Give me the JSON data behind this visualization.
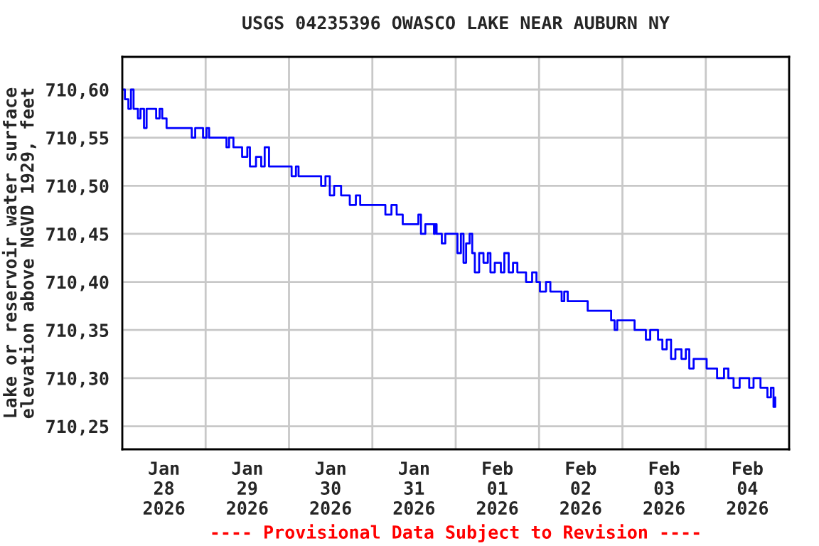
{
  "chart_data": {
    "type": "step",
    "title": "USGS 04235396 OWASCO LAKE NEAR AUBURN NY",
    "ylabel": "Lake or reservoir water surface\nelevation above NGVD 1929, feet",
    "annotations": [
      "---- Provisional Data Subject to Revision ----"
    ],
    "x": [
      "2026-01-28T00:00",
      "2026-01-28T00:45",
      "2026-01-28T01:45",
      "2026-01-28T02:30",
      "2026-01-28T03:15",
      "2026-01-28T04:30",
      "2026-01-28T05:15",
      "2026-01-28T06:15",
      "2026-01-28T07:00",
      "2026-01-28T09:00",
      "2026-01-28T09:45",
      "2026-01-28T10:45",
      "2026-01-28T11:30",
      "2026-01-28T12:45",
      "2026-01-28T13:30",
      "2026-01-28T19:15",
      "2026-01-28T20:00",
      "2026-01-28T21:00",
      "2026-01-28T22:30",
      "2026-01-28T23:15",
      "2026-01-29T00:15",
      "2026-01-29T01:00",
      "2026-01-29T05:00",
      "2026-01-29T06:00",
      "2026-01-29T06:45",
      "2026-01-29T08:00",
      "2026-01-29T09:30",
      "2026-01-29T10:30",
      "2026-01-29T12:00",
      "2026-01-29T12:45",
      "2026-01-29T14:30",
      "2026-01-29T16:00",
      "2026-01-29T17:00",
      "2026-01-29T18:15",
      "2026-01-29T19:30",
      "2026-01-29T23:30",
      "2026-01-30T00:45",
      "2026-01-30T02:00",
      "2026-01-30T02:45",
      "2026-01-30T08:00",
      "2026-01-30T09:15",
      "2026-01-30T10:30",
      "2026-01-30T11:45",
      "2026-01-30T13:00",
      "2026-01-30T15:00",
      "2026-01-30T16:15",
      "2026-01-30T17:30",
      "2026-01-30T19:15",
      "2026-01-30T20:30",
      "2026-01-31T02:30",
      "2026-01-31T03:45",
      "2026-01-31T05:30",
      "2026-01-31T07:00",
      "2026-01-31T08:45",
      "2026-01-31T12:15",
      "2026-01-31T13:15",
      "2026-01-31T14:00",
      "2026-01-31T15:15",
      "2026-01-31T17:45",
      "2026-01-31T18:00",
      "2026-01-31T18:30",
      "2026-01-31T20:00",
      "2026-01-31T21:00",
      "2026-01-31T23:45",
      "2026-02-01T00:30",
      "2026-02-01T01:30",
      "2026-02-01T02:15",
      "2026-02-01T03:00",
      "2026-02-01T04:00",
      "2026-02-01T04:45",
      "2026-02-01T05:30",
      "2026-02-01T06:45",
      "2026-02-01T08:00",
      "2026-02-01T09:15",
      "2026-02-01T10:00",
      "2026-02-01T11:15",
      "2026-02-01T13:00",
      "2026-02-01T14:00",
      "2026-02-01T15:15",
      "2026-02-01T16:30",
      "2026-02-01T17:45",
      "2026-02-01T19:00",
      "2026-02-01T20:15",
      "2026-02-01T22:00",
      "2026-02-01T23:15",
      "2026-02-02T00:15",
      "2026-02-02T02:00",
      "2026-02-02T03:15",
      "2026-02-02T05:15",
      "2026-02-02T06:30",
      "2026-02-02T07:15",
      "2026-02-02T08:15",
      "2026-02-02T12:45",
      "2026-02-02T14:00",
      "2026-02-02T15:30",
      "2026-02-02T20:00",
      "2026-02-02T20:45",
      "2026-02-02T21:45",
      "2026-02-02T22:30",
      "2026-02-03T02:30",
      "2026-02-03T03:30",
      "2026-02-03T05:45",
      "2026-02-03T06:45",
      "2026-02-03T08:00",
      "2026-02-03T10:15",
      "2026-02-03T11:30",
      "2026-02-03T12:45",
      "2026-02-03T14:00",
      "2026-02-03T15:15",
      "2026-02-03T17:00",
      "2026-02-03T18:15",
      "2026-02-03T19:15",
      "2026-02-03T20:30",
      "2026-02-04T00:15",
      "2026-02-04T01:30",
      "2026-02-04T03:15",
      "2026-02-04T05:15",
      "2026-02-04T06:30",
      "2026-02-04T08:00",
      "2026-02-04T09:45",
      "2026-02-04T12:30",
      "2026-02-04T13:45",
      "2026-02-04T15:45",
      "2026-02-04T17:45",
      "2026-02-04T18:45",
      "2026-02-04T19:30",
      "2026-02-04T20:00"
    ],
    "series": [
      {
        "color": "#0000ff",
        "values": [
          710.6,
          710.59,
          710.58,
          710.6,
          710.58,
          710.57,
          710.58,
          710.56,
          710.58,
          710.58,
          710.57,
          710.58,
          710.57,
          710.56,
          710.56,
          710.56,
          710.55,
          710.56,
          710.56,
          710.55,
          710.56,
          710.55,
          710.55,
          710.54,
          710.55,
          710.54,
          710.54,
          710.53,
          710.54,
          710.52,
          710.53,
          710.52,
          710.54,
          710.52,
          710.52,
          710.52,
          710.51,
          710.52,
          710.51,
          710.51,
          710.5,
          710.51,
          710.49,
          710.5,
          710.49,
          710.49,
          710.48,
          710.49,
          710.48,
          710.48,
          710.47,
          710.48,
          710.47,
          710.46,
          710.46,
          710.47,
          710.45,
          710.46,
          710.45,
          710.46,
          710.45,
          710.44,
          710.45,
          710.45,
          710.43,
          710.45,
          710.42,
          710.44,
          710.45,
          710.43,
          710.41,
          710.43,
          710.42,
          710.43,
          710.41,
          710.42,
          710.41,
          710.43,
          710.41,
          710.42,
          710.41,
          710.41,
          710.4,
          710.41,
          710.4,
          710.39,
          710.4,
          710.39,
          710.39,
          710.38,
          710.39,
          710.38,
          710.38,
          710.37,
          710.37,
          710.37,
          710.36,
          710.35,
          710.36,
          710.36,
          710.35,
          710.35,
          710.34,
          710.35,
          710.34,
          710.33,
          710.34,
          710.32,
          710.33,
          710.32,
          710.33,
          710.31,
          710.32,
          710.31,
          710.31,
          710.3,
          710.31,
          710.3,
          710.29,
          710.3,
          710.29,
          710.3,
          710.29,
          710.28,
          710.29,
          710.27,
          710.28
        ]
      }
    ],
    "xlim": [
      "2026-01-28T00:00",
      "2026-02-05T00:00"
    ],
    "xticks": [
      {
        "value": "2026-01-28T00:00",
        "label": null
      },
      {
        "value": "2026-01-28T12:00",
        "label": "Jan\n28\n2026"
      },
      {
        "value": "2026-01-29T00:00",
        "label": null
      },
      {
        "value": "2026-01-29T12:00",
        "label": "Jan\n29\n2026"
      },
      {
        "value": "2026-01-30T00:00",
        "label": null
      },
      {
        "value": "2026-01-30T12:00",
        "label": "Jan\n30\n2026"
      },
      {
        "value": "2026-01-31T00:00",
        "label": null
      },
      {
        "value": "2026-01-31T12:00",
        "label": "Jan\n31\n2026"
      },
      {
        "value": "2026-02-01T00:00",
        "label": null
      },
      {
        "value": "2026-02-01T12:00",
        "label": "Feb\n01\n2026"
      },
      {
        "value": "2026-02-02T00:00",
        "label": null
      },
      {
        "value": "2026-02-02T12:00",
        "label": "Feb\n02\n2026"
      },
      {
        "value": "2026-02-03T00:00",
        "label": null
      },
      {
        "value": "2026-02-03T12:00",
        "label": "Feb\n03\n2026"
      },
      {
        "value": "2026-02-04T00:00",
        "label": null
      },
      {
        "value": "2026-02-04T12:00",
        "label": "Feb\n04\n2026"
      },
      {
        "value": "2026-02-05T00:00",
        "label": null
      }
    ],
    "ylim": [
      710.226,
      710.634
    ],
    "yticks": [
      {
        "value": 710.25,
        "label": "710,25"
      },
      {
        "value": 710.3,
        "label": "710,30"
      },
      {
        "value": 710.35,
        "label": "710,35"
      },
      {
        "value": 710.4,
        "label": "710,40"
      },
      {
        "value": 710.45,
        "label": "710,45"
      },
      {
        "value": 710.5,
        "label": "710,50"
      },
      {
        "value": 710.55,
        "label": "710,55"
      },
      {
        "value": 710.6,
        "label": "710,60"
      }
    ],
    "grid": true
  }
}
